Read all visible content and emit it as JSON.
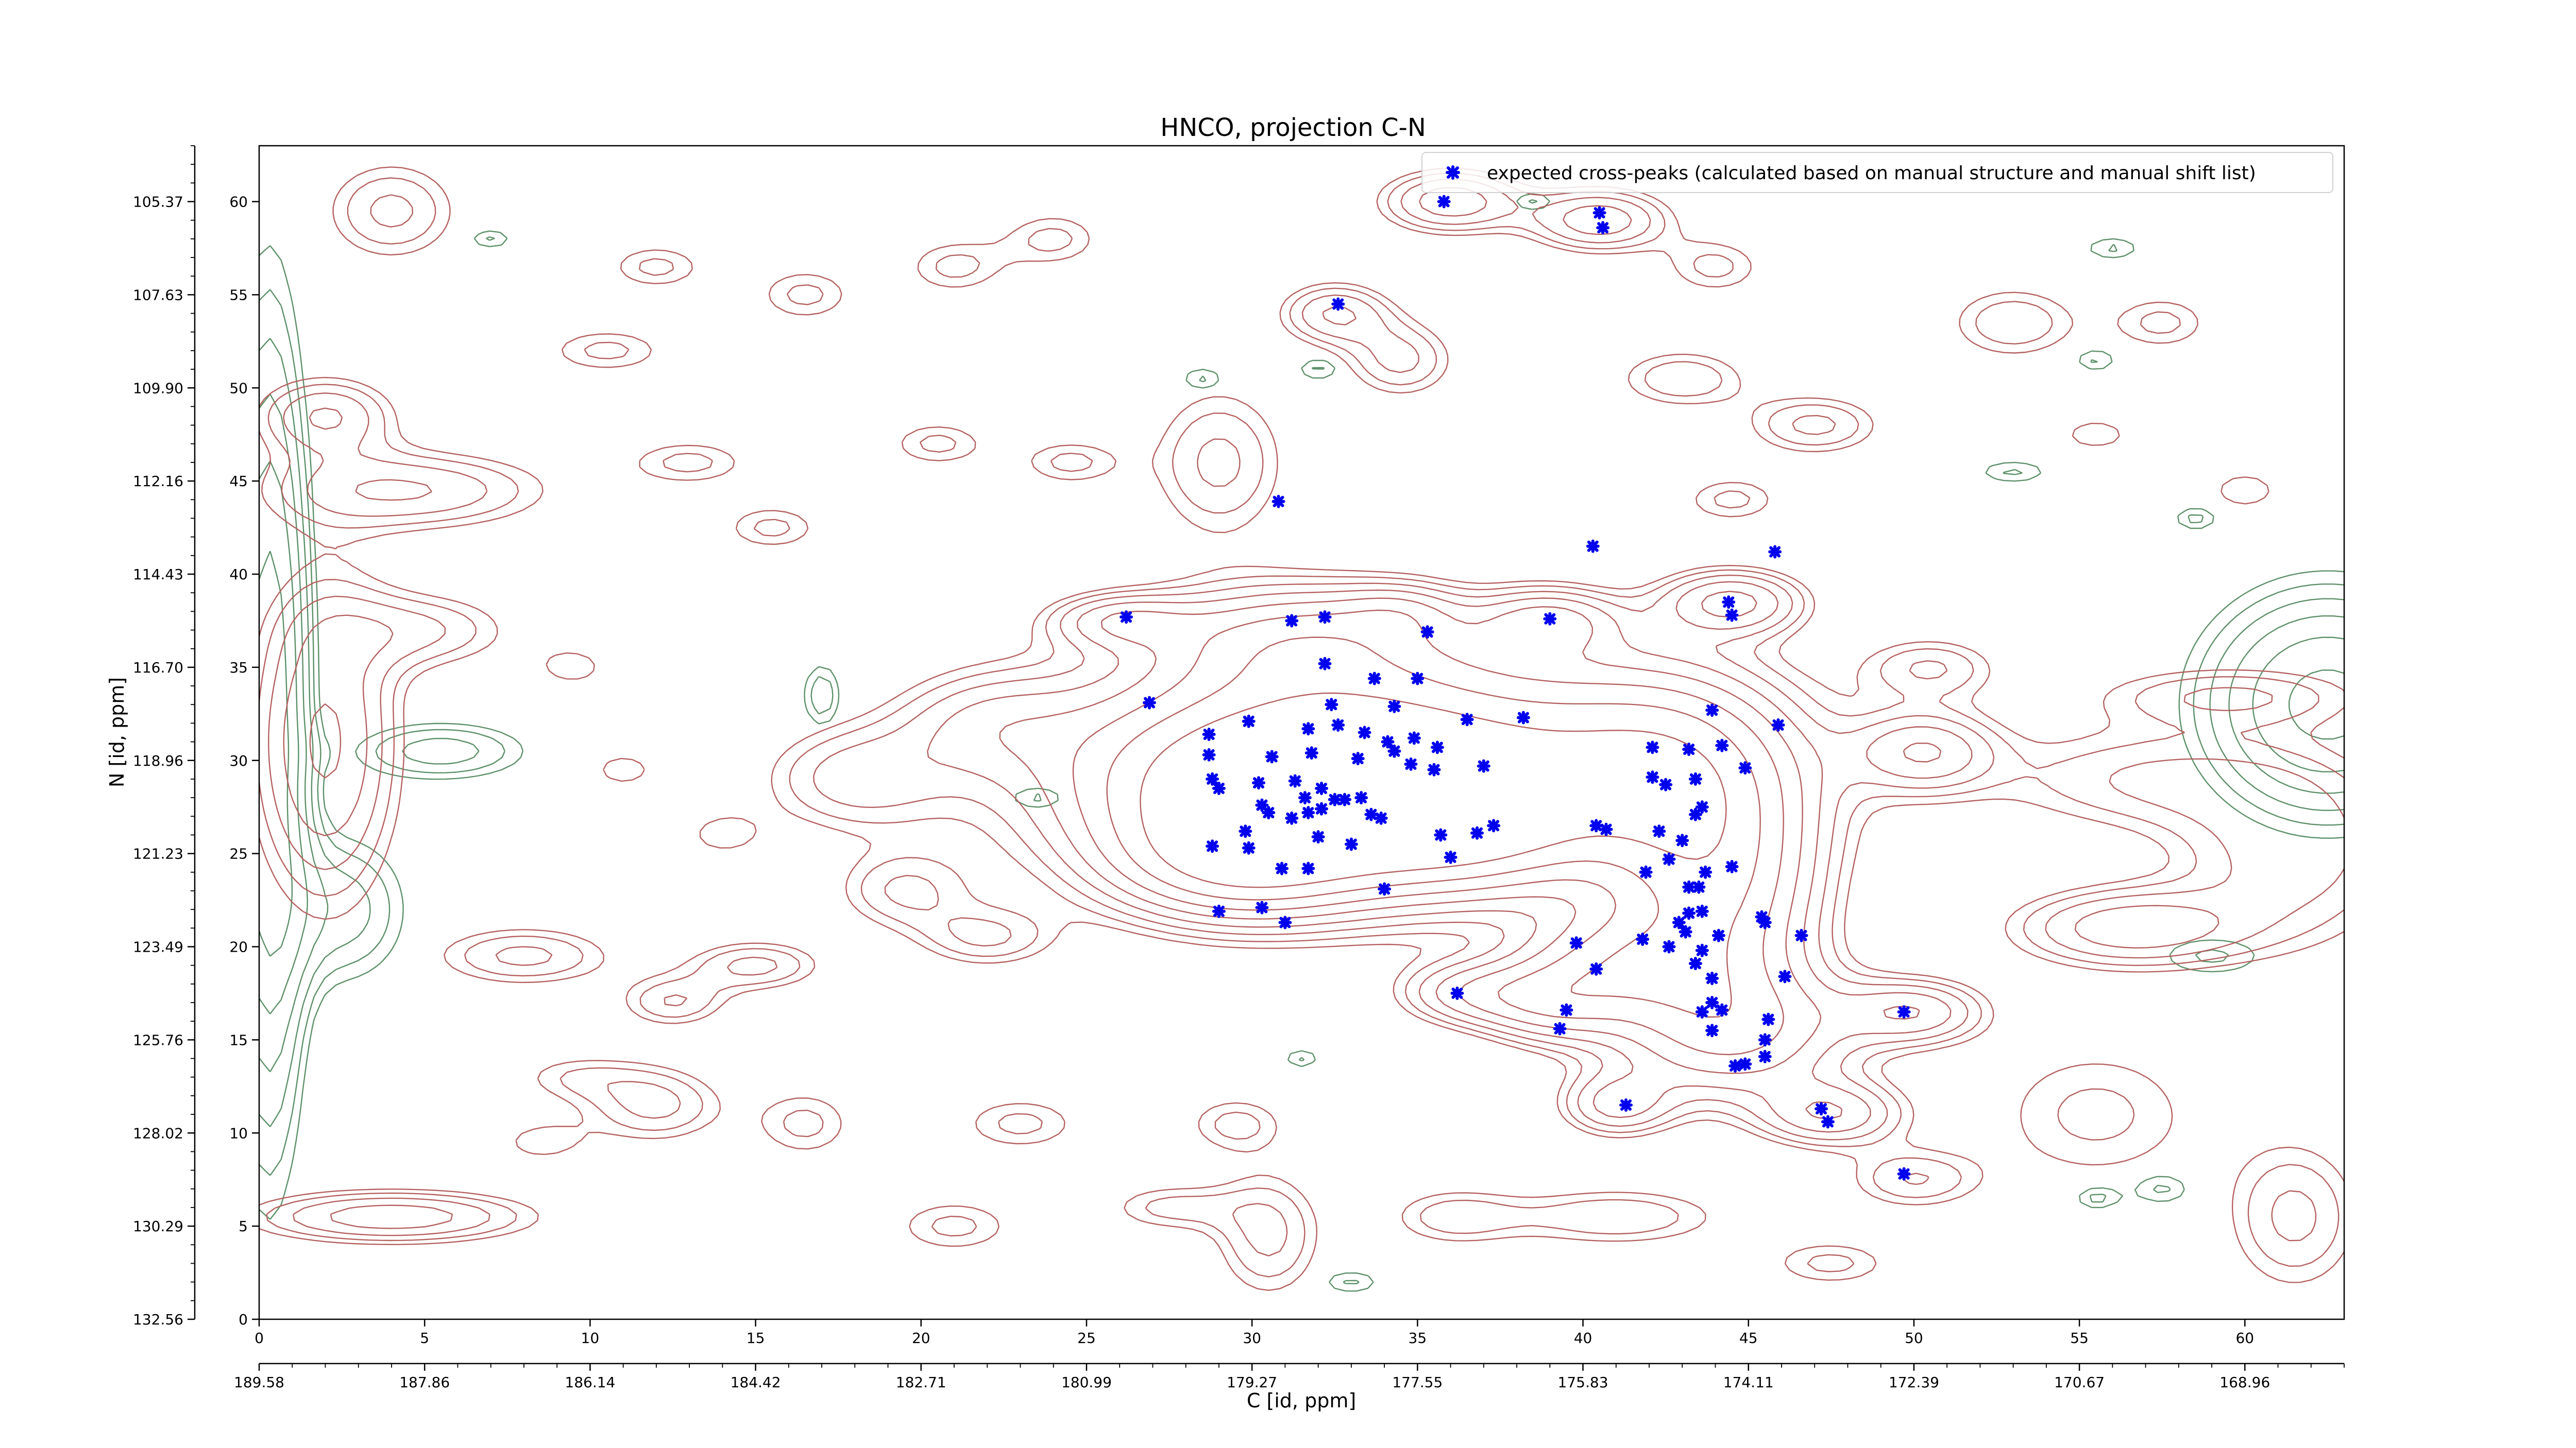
{
  "chart_data": {
    "type": "contour-scatter",
    "title": "HNCO, projection C-N",
    "xlabel": "C [id, ppm]",
    "ylabel": "N [id, ppm]",
    "xlim": [
      0,
      63
    ],
    "ylim": [
      0,
      63
    ],
    "x_index_ticks": [
      "0",
      "5",
      "10",
      "15",
      "20",
      "25",
      "30",
      "35",
      "40",
      "45",
      "50",
      "55",
      "60"
    ],
    "x_ppm_ticks": [
      "189.58",
      "187.86",
      "186.14",
      "184.42",
      "182.71",
      "180.99",
      "179.27",
      "177.55",
      "175.83",
      "174.11",
      "172.39",
      "170.67",
      "168.96"
    ],
    "y_index_ticks": [
      "0",
      "5",
      "10",
      "15",
      "20",
      "25",
      "30",
      "35",
      "40",
      "45",
      "50",
      "55",
      "60"
    ],
    "y_ppm_ticks": [
      "132.56",
      "130.29",
      "128.02",
      "125.76",
      "123.49",
      "121.23",
      "118.96",
      "116.70",
      "114.43",
      "112.16",
      "109.90",
      "107.63",
      "105.37"
    ],
    "legend": {
      "label": "expected cross-peaks (calculated based on manual structure and manual shift list)",
      "position": "top-right"
    },
    "colors": {
      "marker": "#0000ee",
      "positive_contour": "#b5615f",
      "negative_contour": "#5c9068"
    },
    "contour_levels": 8,
    "positive_peaks": [
      {
        "x": 34.0,
        "y": 29.5,
        "sx": 6.0,
        "sy": 4.0,
        "a": 1.0
      },
      {
        "x": 31.0,
        "y": 28.0,
        "sx": 3.5,
        "sy": 3.0,
        "a": 0.7
      },
      {
        "x": 29.5,
        "y": 24.5,
        "sx": 2.5,
        "sy": 2.0,
        "a": 0.5
      },
      {
        "x": 36.5,
        "y": 26.5,
        "sx": 2.5,
        "sy": 2.2,
        "a": 0.45
      },
      {
        "x": 31.5,
        "y": 36.5,
        "sx": 3.0,
        "sy": 2.0,
        "a": 0.4
      },
      {
        "x": 42.5,
        "y": 29.5,
        "sx": 2.5,
        "sy": 3.5,
        "a": 0.5
      },
      {
        "x": 44.0,
        "y": 23.0,
        "sx": 2.0,
        "sy": 4.0,
        "a": 0.55
      },
      {
        "x": 44.5,
        "y": 15.5,
        "sx": 2.5,
        "sy": 2.5,
        "a": 0.45
      },
      {
        "x": 41.0,
        "y": 19.0,
        "sx": 2.0,
        "sy": 2.0,
        "a": 0.4
      },
      {
        "x": 39.0,
        "y": 17.0,
        "sx": 1.5,
        "sy": 1.5,
        "a": 0.3
      },
      {
        "x": 36.5,
        "y": 17.5,
        "sx": 1.5,
        "sy": 1.2,
        "a": 0.25
      },
      {
        "x": 47.5,
        "y": 11.0,
        "sx": 1.5,
        "sy": 1.2,
        "a": 0.3
      },
      {
        "x": 41.0,
        "y": 11.5,
        "sx": 1.2,
        "sy": 1.2,
        "a": 0.25
      },
      {
        "x": 50.0,
        "y": 16.5,
        "sx": 1.5,
        "sy": 1.2,
        "a": 0.3
      },
      {
        "x": 50.3,
        "y": 30.5,
        "sx": 1.5,
        "sy": 1.5,
        "a": 0.3
      },
      {
        "x": 44.5,
        "y": 38.5,
        "sx": 1.5,
        "sy": 1.2,
        "a": 0.35
      },
      {
        "x": 39.0,
        "y": 37.5,
        "sx": 1.5,
        "sy": 1.2,
        "a": 0.3
      },
      {
        "x": 26.0,
        "y": 37.5,
        "sx": 1.5,
        "sy": 1.0,
        "a": 0.25
      },
      {
        "x": 56.5,
        "y": 21.0,
        "sx": 2.5,
        "sy": 1.5,
        "a": 0.3
      },
      {
        "x": 2.0,
        "y": 31.0,
        "sx": 1.5,
        "sy": 6.0,
        "a": 0.35
      },
      {
        "x": 4.0,
        "y": 5.5,
        "sx": 3.0,
        "sy": 1.0,
        "a": 0.3
      },
      {
        "x": 4.5,
        "y": 44.5,
        "sx": 3.0,
        "sy": 1.5,
        "a": 0.25
      },
      {
        "x": 2.0,
        "y": 48.5,
        "sx": 1.5,
        "sy": 1.5,
        "a": 0.25
      },
      {
        "x": 4.0,
        "y": 59.5,
        "sx": 1.5,
        "sy": 2.0,
        "a": 0.2
      },
      {
        "x": 36.0,
        "y": 60.0,
        "sx": 1.5,
        "sy": 1.2,
        "a": 0.3
      },
      {
        "x": 40.5,
        "y": 59.0,
        "sx": 1.5,
        "sy": 1.2,
        "a": 0.3
      },
      {
        "x": 32.5,
        "y": 54.0,
        "sx": 1.2,
        "sy": 1.2,
        "a": 0.25
      },
      {
        "x": 29.0,
        "y": 46.0,
        "sx": 1.5,
        "sy": 3.0,
        "a": 0.2
      },
      {
        "x": 34.5,
        "y": 51.5,
        "sx": 1.2,
        "sy": 1.5,
        "a": 0.2
      },
      {
        "x": 18.0,
        "y": 29.0,
        "sx": 2.0,
        "sy": 2.0,
        "a": 0.2
      },
      {
        "x": 22.0,
        "y": 32.0,
        "sx": 2.0,
        "sy": 2.0,
        "a": 0.18
      },
      {
        "x": 19.5,
        "y": 23.0,
        "sx": 1.5,
        "sy": 1.5,
        "a": 0.18
      },
      {
        "x": 22.0,
        "y": 20.5,
        "sx": 1.5,
        "sy": 1.2,
        "a": 0.18
      },
      {
        "x": 15.0,
        "y": 19.0,
        "sx": 1.5,
        "sy": 1.0,
        "a": 0.2
      },
      {
        "x": 12.5,
        "y": 17.0,
        "sx": 1.2,
        "sy": 1.0,
        "a": 0.18
      },
      {
        "x": 8.0,
        "y": 19.5,
        "sx": 2.0,
        "sy": 1.2,
        "a": 0.2
      },
      {
        "x": 12.0,
        "y": 11.5,
        "sx": 1.5,
        "sy": 1.5,
        "a": 0.2
      },
      {
        "x": 16.5,
        "y": 10.5,
        "sx": 1.2,
        "sy": 1.5,
        "a": 0.15
      },
      {
        "x": 21.0,
        "y": 5.0,
        "sx": 1.5,
        "sy": 1.2,
        "a": 0.15
      },
      {
        "x": 23.0,
        "y": 10.5,
        "sx": 1.5,
        "sy": 1.2,
        "a": 0.15
      },
      {
        "x": 29.5,
        "y": 10.5,
        "sx": 1.2,
        "sy": 1.2,
        "a": 0.15
      },
      {
        "x": 30.5,
        "y": 4.5,
        "sx": 1.2,
        "sy": 2.5,
        "a": 0.2
      },
      {
        "x": 27.5,
        "y": 6.0,
        "sx": 1.5,
        "sy": 1.0,
        "a": 0.15
      },
      {
        "x": 36.0,
        "y": 5.5,
        "sx": 1.5,
        "sy": 1.2,
        "a": 0.15
      },
      {
        "x": 41.0,
        "y": 5.5,
        "sx": 2.5,
        "sy": 1.2,
        "a": 0.18
      },
      {
        "x": 47.5,
        "y": 3.0,
        "sx": 1.5,
        "sy": 1.0,
        "a": 0.15
      },
      {
        "x": 50.0,
        "y": 7.5,
        "sx": 1.5,
        "sy": 1.2,
        "a": 0.18
      },
      {
        "x": 55.5,
        "y": 11.0,
        "sx": 2.5,
        "sy": 3.0,
        "a": 0.15
      },
      {
        "x": 57.0,
        "y": 29.0,
        "sx": 3.5,
        "sy": 2.0,
        "a": 0.18
      },
      {
        "x": 61.5,
        "y": 25.0,
        "sx": 2.5,
        "sy": 3.5,
        "a": 0.22
      },
      {
        "x": 61.5,
        "y": 5.5,
        "sx": 1.5,
        "sy": 3.0,
        "a": 0.2
      },
      {
        "x": 59.5,
        "y": 33.5,
        "sx": 3.0,
        "sy": 1.2,
        "a": 0.18
      },
      {
        "x": 50.5,
        "y": 35.0,
        "sx": 1.5,
        "sy": 1.2,
        "a": 0.18
      },
      {
        "x": 47.0,
        "y": 48.0,
        "sx": 1.5,
        "sy": 1.2,
        "a": 0.2
      },
      {
        "x": 53.0,
        "y": 53.5,
        "sx": 1.5,
        "sy": 1.5,
        "a": 0.18
      },
      {
        "x": 57.5,
        "y": 53.5,
        "sx": 1.2,
        "sy": 1.2,
        "a": 0.15
      },
      {
        "x": 43.0,
        "y": 50.5,
        "sx": 1.5,
        "sy": 1.2,
        "a": 0.18
      },
      {
        "x": 44.5,
        "y": 44.0,
        "sx": 1.2,
        "sy": 1.0,
        "a": 0.15
      },
      {
        "x": 44.0,
        "y": 56.5,
        "sx": 1.2,
        "sy": 1.2,
        "a": 0.15
      },
      {
        "x": 34.5,
        "y": 38.0,
        "sx": 1.2,
        "sy": 1.0,
        "a": 0.15
      },
      {
        "x": 24.0,
        "y": 58.0,
        "sx": 1.2,
        "sy": 1.2,
        "a": 0.15
      },
      {
        "x": 21.0,
        "y": 56.5,
        "sx": 1.2,
        "sy": 1.2,
        "a": 0.15
      },
      {
        "x": 16.5,
        "y": 55.0,
        "sx": 1.2,
        "sy": 1.2,
        "a": 0.15
      },
      {
        "x": 10.5,
        "y": 52.0,
        "sx": 1.5,
        "sy": 1.0,
        "a": 0.15
      },
      {
        "x": 13.0,
        "y": 46.0,
        "sx": 1.5,
        "sy": 1.0,
        "a": 0.15
      },
      {
        "x": 15.5,
        "y": 42.5,
        "sx": 1.2,
        "sy": 1.0,
        "a": 0.15
      },
      {
        "x": 12.0,
        "y": 56.5,
        "sx": 1.2,
        "sy": 1.0,
        "a": 0.15
      },
      {
        "x": 20.5,
        "y": 47.0,
        "sx": 1.2,
        "sy": 1.0,
        "a": 0.15
      },
      {
        "x": 24.5,
        "y": 46.0,
        "sx": 1.2,
        "sy": 1.0,
        "a": 0.15
      },
      {
        "x": 11.0,
        "y": 29.5,
        "sx": 1.0,
        "sy": 1.0,
        "a": 0.12
      },
      {
        "x": 9.5,
        "y": 35.0,
        "sx": 1.0,
        "sy": 1.0,
        "a": 0.12
      },
      {
        "x": 5.0,
        "y": 37.0,
        "sx": 2.0,
        "sy": 1.5,
        "a": 0.18
      },
      {
        "x": 14.0,
        "y": 26.0,
        "sx": 1.0,
        "sy": 1.0,
        "a": 0.12
      },
      {
        "x": 9.5,
        "y": 13.0,
        "sx": 1.5,
        "sy": 1.0,
        "a": 0.12
      },
      {
        "x": 8.5,
        "y": 9.5,
        "sx": 1.2,
        "sy": 1.0,
        "a": 0.12
      },
      {
        "x": 55.5,
        "y": 47.5,
        "sx": 1.2,
        "sy": 1.0,
        "a": 0.12
      },
      {
        "x": 60.0,
        "y": 44.5,
        "sx": 1.2,
        "sy": 1.2,
        "a": 0.12
      }
    ],
    "negative_peaks": [
      {
        "x": 0.3,
        "y": 31.5,
        "sx": 0.8,
        "sy": 14.0,
        "a": 0.4
      },
      {
        "x": 62.5,
        "y": 33.0,
        "sx": 2.5,
        "sy": 4.0,
        "a": 0.35
      },
      {
        "x": 2.5,
        "y": 22.0,
        "sx": 1.5,
        "sy": 3.0,
        "a": 0.15
      },
      {
        "x": 5.5,
        "y": 30.5,
        "sx": 2.0,
        "sy": 1.2,
        "a": 0.15
      },
      {
        "x": 17.0,
        "y": 33.5,
        "sx": 0.5,
        "sy": 1.5,
        "a": 0.12
      },
      {
        "x": 28.5,
        "y": 50.5,
        "sx": 0.6,
        "sy": 0.6,
        "a": 0.1
      },
      {
        "x": 55.5,
        "y": 51.5,
        "sx": 0.6,
        "sy": 0.6,
        "a": 0.1
      },
      {
        "x": 59.0,
        "y": 19.5,
        "sx": 1.5,
        "sy": 1.0,
        "a": 0.1
      },
      {
        "x": 57.5,
        "y": 7.0,
        "sx": 0.8,
        "sy": 0.8,
        "a": 0.1
      },
      {
        "x": 33.0,
        "y": 2.0,
        "sx": 0.8,
        "sy": 0.6,
        "a": 0.1
      },
      {
        "x": 23.5,
        "y": 28.0,
        "sx": 0.8,
        "sy": 0.6,
        "a": 0.1
      },
      {
        "x": 31.5,
        "y": 14.0,
        "sx": 0.5,
        "sy": 0.5,
        "a": 0.1
      },
      {
        "x": 53.0,
        "y": 45.5,
        "sx": 1.0,
        "sy": 0.6,
        "a": 0.1
      },
      {
        "x": 56.0,
        "y": 57.5,
        "sx": 0.8,
        "sy": 0.6,
        "a": 0.1
      },
      {
        "x": 58.5,
        "y": 43.0,
        "sx": 0.6,
        "sy": 0.6,
        "a": 0.1
      },
      {
        "x": 55.5,
        "y": 6.5,
        "sx": 0.6,
        "sy": 0.6,
        "a": 0.1
      },
      {
        "x": 7.0,
        "y": 58.0,
        "sx": 0.6,
        "sy": 0.5,
        "a": 0.1
      },
      {
        "x": 32.0,
        "y": 51.0,
        "sx": 0.6,
        "sy": 0.6,
        "a": 0.1
      },
      {
        "x": 38.5,
        "y": 60.0,
        "sx": 0.6,
        "sy": 0.5,
        "a": 0.1
      }
    ],
    "cross_peaks": [
      [
        30.8,
        43.9
      ],
      [
        35.8,
        60.0
      ],
      [
        40.5,
        59.4
      ],
      [
        40.6,
        58.6
      ],
      [
        32.6,
        54.5
      ],
      [
        40.3,
        41.5
      ],
      [
        45.8,
        41.2
      ],
      [
        26.2,
        37.7
      ],
      [
        31.2,
        37.5
      ],
      [
        32.2,
        37.7
      ],
      [
        35.3,
        36.9
      ],
      [
        39.0,
        37.6
      ],
      [
        44.4,
        38.5
      ],
      [
        44.5,
        37.8
      ],
      [
        32.2,
        35.2
      ],
      [
        33.7,
        34.4
      ],
      [
        35.0,
        34.4
      ],
      [
        26.9,
        33.1
      ],
      [
        32.4,
        33.0
      ],
      [
        34.3,
        32.9
      ],
      [
        36.5,
        32.2
      ],
      [
        38.2,
        32.3
      ],
      [
        45.9,
        31.9
      ],
      [
        43.9,
        32.7
      ],
      [
        28.7,
        31.4
      ],
      [
        29.9,
        32.1
      ],
      [
        31.7,
        31.7
      ],
      [
        32.6,
        31.9
      ],
      [
        33.4,
        31.5
      ],
      [
        34.1,
        31.0
      ],
      [
        34.9,
        31.2
      ],
      [
        35.6,
        30.7
      ],
      [
        34.3,
        30.5
      ],
      [
        33.2,
        30.1
      ],
      [
        34.8,
        29.8
      ],
      [
        35.5,
        29.5
      ],
      [
        31.8,
        30.4
      ],
      [
        30.6,
        30.2
      ],
      [
        28.7,
        30.3
      ],
      [
        37.0,
        29.7
      ],
      [
        42.1,
        30.7
      ],
      [
        43.2,
        30.6
      ],
      [
        44.2,
        30.8
      ],
      [
        28.8,
        29.0
      ],
      [
        29.0,
        28.5
      ],
      [
        30.2,
        28.8
      ],
      [
        31.3,
        28.9
      ],
      [
        32.1,
        28.5
      ],
      [
        31.6,
        28.0
      ],
      [
        32.5,
        27.9
      ],
      [
        32.8,
        27.9
      ],
      [
        33.3,
        28.0
      ],
      [
        30.3,
        27.6
      ],
      [
        30.5,
        27.2
      ],
      [
        31.2,
        26.9
      ],
      [
        31.7,
        27.2
      ],
      [
        32.1,
        27.4
      ],
      [
        33.6,
        27.1
      ],
      [
        33.9,
        26.9
      ],
      [
        42.1,
        29.1
      ],
      [
        42.5,
        28.7
      ],
      [
        43.4,
        29.0
      ],
      [
        44.9,
        29.6
      ],
      [
        28.8,
        25.4
      ],
      [
        29.8,
        26.2
      ],
      [
        32.0,
        25.9
      ],
      [
        33.0,
        25.5
      ],
      [
        35.7,
        26.0
      ],
      [
        36.8,
        26.1
      ],
      [
        37.3,
        26.5
      ],
      [
        36.0,
        24.8
      ],
      [
        40.4,
        26.5
      ],
      [
        40.7,
        26.3
      ],
      [
        42.3,
        26.2
      ],
      [
        43.6,
        27.5
      ],
      [
        43.4,
        27.1
      ],
      [
        43.0,
        25.7
      ],
      [
        42.6,
        24.7
      ],
      [
        43.7,
        24.0
      ],
      [
        44.5,
        24.3
      ],
      [
        41.9,
        24.0
      ],
      [
        30.9,
        24.2
      ],
      [
        31.7,
        24.2
      ],
      [
        29.9,
        25.3
      ],
      [
        34.0,
        23.1
      ],
      [
        43.2,
        23.2
      ],
      [
        43.5,
        23.2
      ],
      [
        30.3,
        22.1
      ],
      [
        29.0,
        21.9
      ],
      [
        31.0,
        21.3
      ],
      [
        43.2,
        21.8
      ],
      [
        43.6,
        21.9
      ],
      [
        42.9,
        21.3
      ],
      [
        43.1,
        20.8
      ],
      [
        45.4,
        21.6
      ],
      [
        45.5,
        21.3
      ],
      [
        46.6,
        20.6
      ],
      [
        44.1,
        20.6
      ],
      [
        39.8,
        20.2
      ],
      [
        41.8,
        20.4
      ],
      [
        42.6,
        20.0
      ],
      [
        43.6,
        19.8
      ],
      [
        43.4,
        19.1
      ],
      [
        40.4,
        18.8
      ],
      [
        43.9,
        18.3
      ],
      [
        46.1,
        18.4
      ],
      [
        36.2,
        17.5
      ],
      [
        43.9,
        17.0
      ],
      [
        43.6,
        16.5
      ],
      [
        44.2,
        16.6
      ],
      [
        39.5,
        16.6
      ],
      [
        39.3,
        15.6
      ],
      [
        43.9,
        15.5
      ],
      [
        45.5,
        15.0
      ],
      [
        45.6,
        16.1
      ],
      [
        49.7,
        16.5
      ],
      [
        45.5,
        14.1
      ],
      [
        44.9,
        13.7
      ],
      [
        44.6,
        13.6
      ],
      [
        41.3,
        11.5
      ],
      [
        47.2,
        11.3
      ],
      [
        47.4,
        10.6
      ],
      [
        49.7,
        7.8
      ]
    ]
  }
}
